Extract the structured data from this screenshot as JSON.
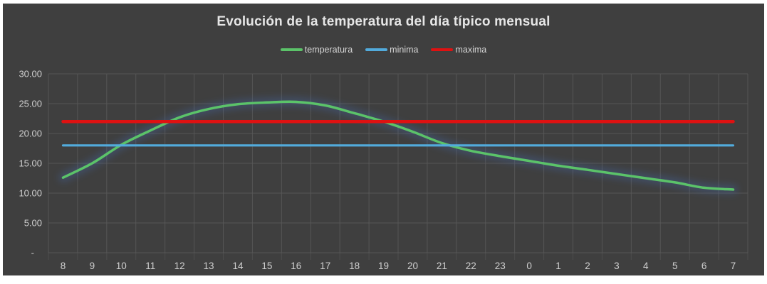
{
  "page": {
    "background": "#FFFFFF",
    "chart_background": "#3F3F3F"
  },
  "chart_data": {
    "type": "line",
    "title": "Evolución de la temperatura del día típico mensual",
    "legend_position": "top",
    "grid": true,
    "grid_color": "#5A5A5A",
    "tick_color": "#CFCFCF",
    "title_color": "#E6E6E6",
    "legend_text_color": "#D5D5D5",
    "categories": [
      "8",
      "9",
      "10",
      "11",
      "12",
      "13",
      "14",
      "15",
      "16",
      "17",
      "18",
      "19",
      "20",
      "21",
      "22",
      "23",
      "0",
      "1",
      "2",
      "3",
      "4",
      "5",
      "6",
      "7"
    ],
    "series": [
      {
        "name": "temperatura",
        "color": "#5BC369",
        "glow_color": "#4472C4",
        "smooth": true,
        "values": [
          12.6,
          15.0,
          18.1,
          20.5,
          22.7,
          24.1,
          24.9,
          25.2,
          25.3,
          24.7,
          23.4,
          22.0,
          20.3,
          18.4,
          17.1,
          16.2,
          15.4,
          14.6,
          13.9,
          13.2,
          12.5,
          11.8,
          10.9,
          10.6
        ]
      },
      {
        "name": "minima",
        "color": "#52ABDC",
        "glow_color": "#ED7D31",
        "smooth": false,
        "values": [
          18,
          18,
          18,
          18,
          18,
          18,
          18,
          18,
          18,
          18,
          18,
          18,
          18,
          18,
          18,
          18,
          18,
          18,
          18,
          18,
          18,
          18,
          18,
          18
        ]
      },
      {
        "name": "maxima",
        "color": "#DF1111",
        "glow_color": "#70AD47",
        "smooth": false,
        "values": [
          22,
          22,
          22,
          22,
          22,
          22,
          22,
          22,
          22,
          22,
          22,
          22,
          22,
          22,
          22,
          22,
          22,
          22,
          22,
          22,
          22,
          22,
          22,
          22
        ]
      }
    ],
    "y_axis": {
      "min": 0,
      "max": 30,
      "ticks": [
        {
          "label": "30.00",
          "value": 30
        },
        {
          "label": "25.00",
          "value": 25
        },
        {
          "label": "20.00",
          "value": 20
        },
        {
          "label": "15.00",
          "value": 15
        },
        {
          "label": "10.00",
          "value": 10
        },
        {
          "label": "5.00",
          "value": 5
        },
        {
          "label": "-",
          "value": 0
        }
      ]
    }
  }
}
